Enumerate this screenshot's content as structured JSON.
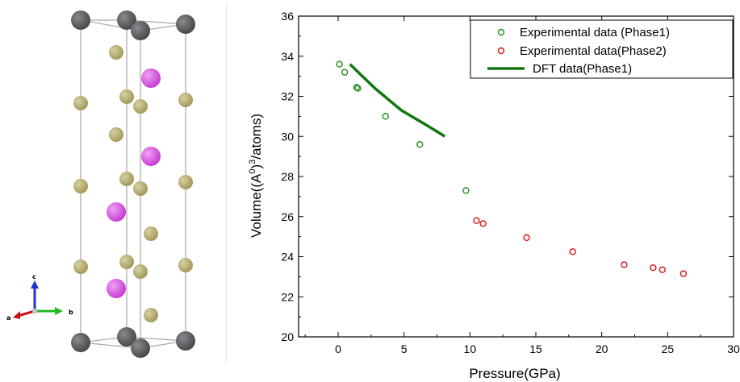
{
  "crystal": {
    "axes_letters": [
      "a",
      "b",
      "c"
    ],
    "colors": {
      "cell_edge": "#a8a8a8",
      "large_atom": "#4a4a4d",
      "small_atom": "#a49a5f",
      "magenta_atom": "#c73fd2",
      "axis_a": "#cc1111",
      "axis_b": "#22bb22",
      "axis_c": "#2233cc"
    }
  },
  "chart_data": {
    "type": "scatter",
    "xlabel": "Pressure(GPa)",
    "ylabel_parts": {
      "pre": "Volume((A",
      "sup1": "0",
      "mid": ")",
      "sup2": "3",
      "post": "/atoms)"
    },
    "xlim": [
      -3,
      30
    ],
    "ylim": [
      20,
      36
    ],
    "x_ticks": [
      0,
      5,
      10,
      15,
      20,
      25,
      30
    ],
    "x_tick_labels": [
      "0",
      "5",
      "10",
      "15",
      "20",
      "25",
      "30"
    ],
    "y_ticks": [
      20,
      22,
      24,
      26,
      28,
      30,
      32,
      34,
      36
    ],
    "y_tick_labels": [
      "20",
      "22",
      "24",
      "26",
      "28",
      "30",
      "32",
      "34",
      "36"
    ],
    "legend_position": "top-right",
    "series": [
      {
        "name": "Experimental data (Phase1)",
        "kind": "scatter",
        "color": "#1f8f1f",
        "points": [
          [
            0.1,
            33.6
          ],
          [
            0.5,
            33.2
          ],
          [
            1.4,
            32.45
          ],
          [
            1.5,
            32.4
          ],
          [
            3.6,
            31.0
          ],
          [
            6.2,
            29.6
          ],
          [
            9.7,
            27.3
          ]
        ]
      },
      {
        "name": "Experimental data(Phase2)",
        "kind": "scatter",
        "color": "#e01010",
        "points": [
          [
            10.5,
            25.8
          ],
          [
            11.0,
            25.65
          ],
          [
            14.3,
            24.95
          ],
          [
            17.8,
            24.25
          ],
          [
            21.7,
            23.6
          ],
          [
            23.9,
            23.45
          ],
          [
            24.6,
            23.35
          ],
          [
            26.2,
            23.15
          ]
        ]
      },
      {
        "name": "DFT data(Phase1)",
        "kind": "line",
        "color": "#117711",
        "points": [
          [
            0.9,
            33.6
          ],
          [
            2.8,
            32.4
          ],
          [
            4.8,
            31.3
          ],
          [
            6.6,
            30.6
          ],
          [
            8.1,
            30.0
          ]
        ]
      }
    ]
  }
}
